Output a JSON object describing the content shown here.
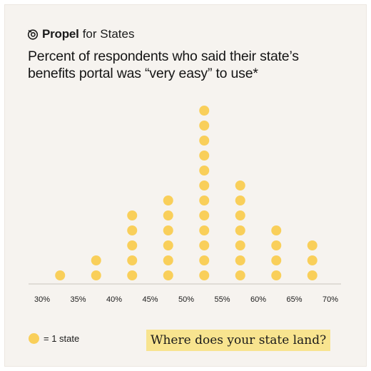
{
  "brand": {
    "name_bold": "Propel",
    "name_rest": "for States",
    "logo_icon": "spiral-icon"
  },
  "heading": {
    "line1": "Percent of respondents who said their state’s",
    "line2": "benefits portal was “very easy” to use*"
  },
  "legend": {
    "label": "= 1 state",
    "marker_icon": "yellow-dot-icon"
  },
  "callout": {
    "text": "Where does your state land?"
  },
  "colors": {
    "dot": "#f9cf5a",
    "background": "#f6f3ef",
    "callout_bg": "#f8e48f",
    "axis": "#c9c4bd"
  },
  "chart_data": {
    "type": "dot",
    "title": "Percent of respondents who said their state’s benefits portal was “very easy” to use*",
    "xlabel": "",
    "ylabel": "",
    "x_ticks": [
      "30%",
      "35%",
      "40%",
      "45%",
      "50%",
      "55%",
      "60%",
      "65%",
      "70%"
    ],
    "x_tick_values": [
      30,
      35,
      40,
      45,
      50,
      55,
      60,
      65,
      70
    ],
    "xlim": [
      29,
      71
    ],
    "bin_width": 5,
    "bins": [
      {
        "range": "30%–35%",
        "center": 32.5,
        "count": 1
      },
      {
        "range": "35%–40%",
        "center": 37.5,
        "count": 2
      },
      {
        "range": "40%–45%",
        "center": 42.5,
        "count": 5
      },
      {
        "range": "45%–50%",
        "center": 47.5,
        "count": 6
      },
      {
        "range": "50%–55%",
        "center": 52.5,
        "count": 12
      },
      {
        "range": "55%–60%",
        "center": 57.5,
        "count": 7
      },
      {
        "range": "60%–65%",
        "center": 62.5,
        "count": 4
      },
      {
        "range": "65%–70%",
        "center": 67.5,
        "count": 3
      }
    ],
    "unit_label": "= 1 state",
    "grid": false
  }
}
